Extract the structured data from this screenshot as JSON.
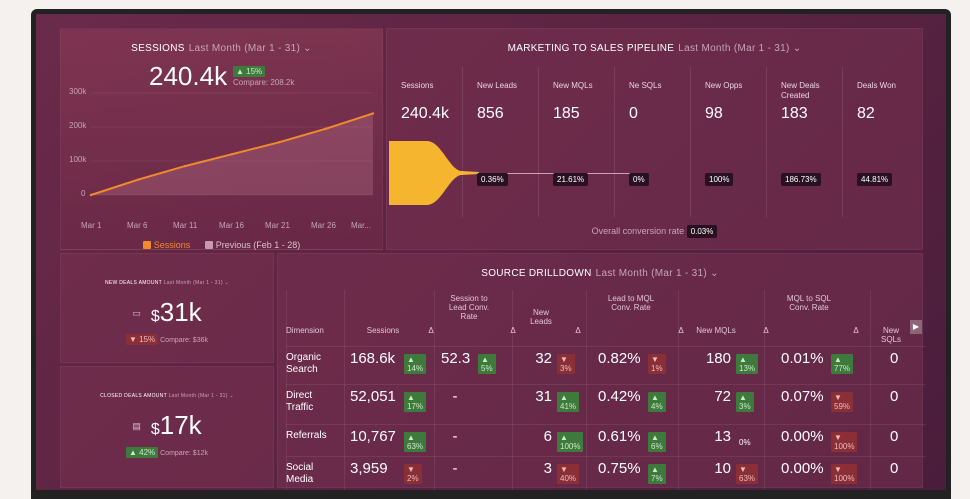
{
  "sessions": {
    "title": "SESSIONS",
    "period": "Last Month (Mar 1 - 31) ⌄",
    "value": "240.4k",
    "change": "▲ 15%",
    "compare": "Compare: 208.2k",
    "yticks": [
      "300k",
      "200k",
      "100k",
      "0"
    ],
    "xticks": [
      "Mar 1",
      "Mar 6",
      "Mar 11",
      "Mar 16",
      "Mar 21",
      "Mar 26",
      "Mar..."
    ],
    "legend_current": "Sessions",
    "legend_previous": "Previous (Feb 1 - 28)",
    "colors": {
      "current": "#f08a2a",
      "previous": "#c59aae"
    }
  },
  "chart_data": {
    "type": "line",
    "x": [
      "Mar 1",
      "Mar 6",
      "Mar 11",
      "Mar 16",
      "Mar 21",
      "Mar 26",
      "Mar 31"
    ],
    "series": [
      {
        "name": "Sessions",
        "values": [
          0,
          45000,
          85000,
          120000,
          155000,
          195000,
          240000
        ]
      }
    ],
    "ylim": [
      0,
      300000
    ],
    "yticks": [
      "300k",
      "200k",
      "100k",
      "0"
    ]
  },
  "pipeline": {
    "title": "MARKETING TO SALES PIPELINE",
    "period": "Last Month (Mar 1 - 31) ⌄",
    "columns": [
      {
        "label": "Sessions",
        "value": "240.4k",
        "rate": ""
      },
      {
        "label": "New Leads",
        "value": "856",
        "rate": "0.36%"
      },
      {
        "label": "New MQLs",
        "value": "185",
        "rate": "21.61%"
      },
      {
        "label": "Ne SQLs",
        "value": "0",
        "rate": "0%"
      },
      {
        "label": "New Opps",
        "value": "98",
        "rate": "100%"
      },
      {
        "label": "New Deals Created",
        "value": "183",
        "rate": "186.73%"
      },
      {
        "label": "Deals Won",
        "value": "82",
        "rate": "44.81%"
      }
    ],
    "overall_label": "Overall conversion rate",
    "overall_value": "0.03%",
    "funnel_color": "#f5b52e"
  },
  "new_deals": {
    "title": "NEW DEALS AMOUNT",
    "period": "Last Month (Mar 1 - 31) ⌄",
    "currency": "$",
    "value": "31k",
    "change": "▼ 15%",
    "compare": "Compare: $36k"
  },
  "closed_deals": {
    "title": "CLOSED DEALS AMOUNT",
    "period": "Last Month (Mar 1 - 31) ⌄",
    "currency": "$",
    "value": "17k",
    "change": "▲ 42%",
    "compare": "Compare: $12k"
  },
  "drilldown": {
    "title": "SOURCE DRILLDOWN",
    "period": "Last Month (Mar 1 - 31) ⌄",
    "headers": [
      "Dimension",
      "Sessions",
      "Δ",
      "Session to Lead Conv. Rate",
      "Δ",
      "New Leads",
      "Δ",
      "Lead to MQL Conv. Rate",
      "Δ",
      "New MQLs",
      "Δ",
      "MQL to SQL Conv. Rate",
      "Δ",
      "New SQLs"
    ],
    "rows": [
      {
        "dim": "Organic Search",
        "sessions": "168.6k",
        "d1": "▲ 14%",
        "s2l": "52.3",
        "d2": "▲ 5%",
        "leads": "32",
        "d3": "▼ 3%",
        "l2m": "0.82%",
        "d4": "▼ 1%",
        "mqls": "180",
        "d5": "▲ 13%",
        "m2s": "0.01%",
        "d6": "▲ 77%",
        "sqls": "0"
      },
      {
        "dim": "Direct Traffic",
        "sessions": "52,051",
        "d1": "▲ 17%",
        "s2l": "-",
        "d2": "",
        "leads": "31",
        "d3": "▲ 41%",
        "l2m": "0.42%",
        "d4": "▲ 4%",
        "mqls": "72",
        "d5": "▲ 3%",
        "m2s": "0.07%",
        "d6": "▼ 59%",
        "sqls": "0"
      },
      {
        "dim": "Referrals",
        "sessions": "10,767",
        "d1": "▲ 63%",
        "s2l": "-",
        "d2": "",
        "leads": "6",
        "d3": "▲ 100%",
        "l2m": "0.61%",
        "d4": "▲ 6%",
        "mqls": "13",
        "d5": "0%",
        "m2s": "0.00%",
        "d6": "▼ 100%",
        "sqls": "0"
      },
      {
        "dim": "Social Media",
        "sessions": "3,959",
        "d1": "▼ 2%",
        "s2l": "-",
        "d2": "",
        "leads": "3",
        "d3": "▼ 40%",
        "l2m": "0.75%",
        "d4": "▲ 7%",
        "mqls": "10",
        "d5": "▼ 63%",
        "m2s": "0.00%",
        "d6": "▼ 100%",
        "sqls": "0"
      }
    ],
    "scroll_label": "▶"
  }
}
